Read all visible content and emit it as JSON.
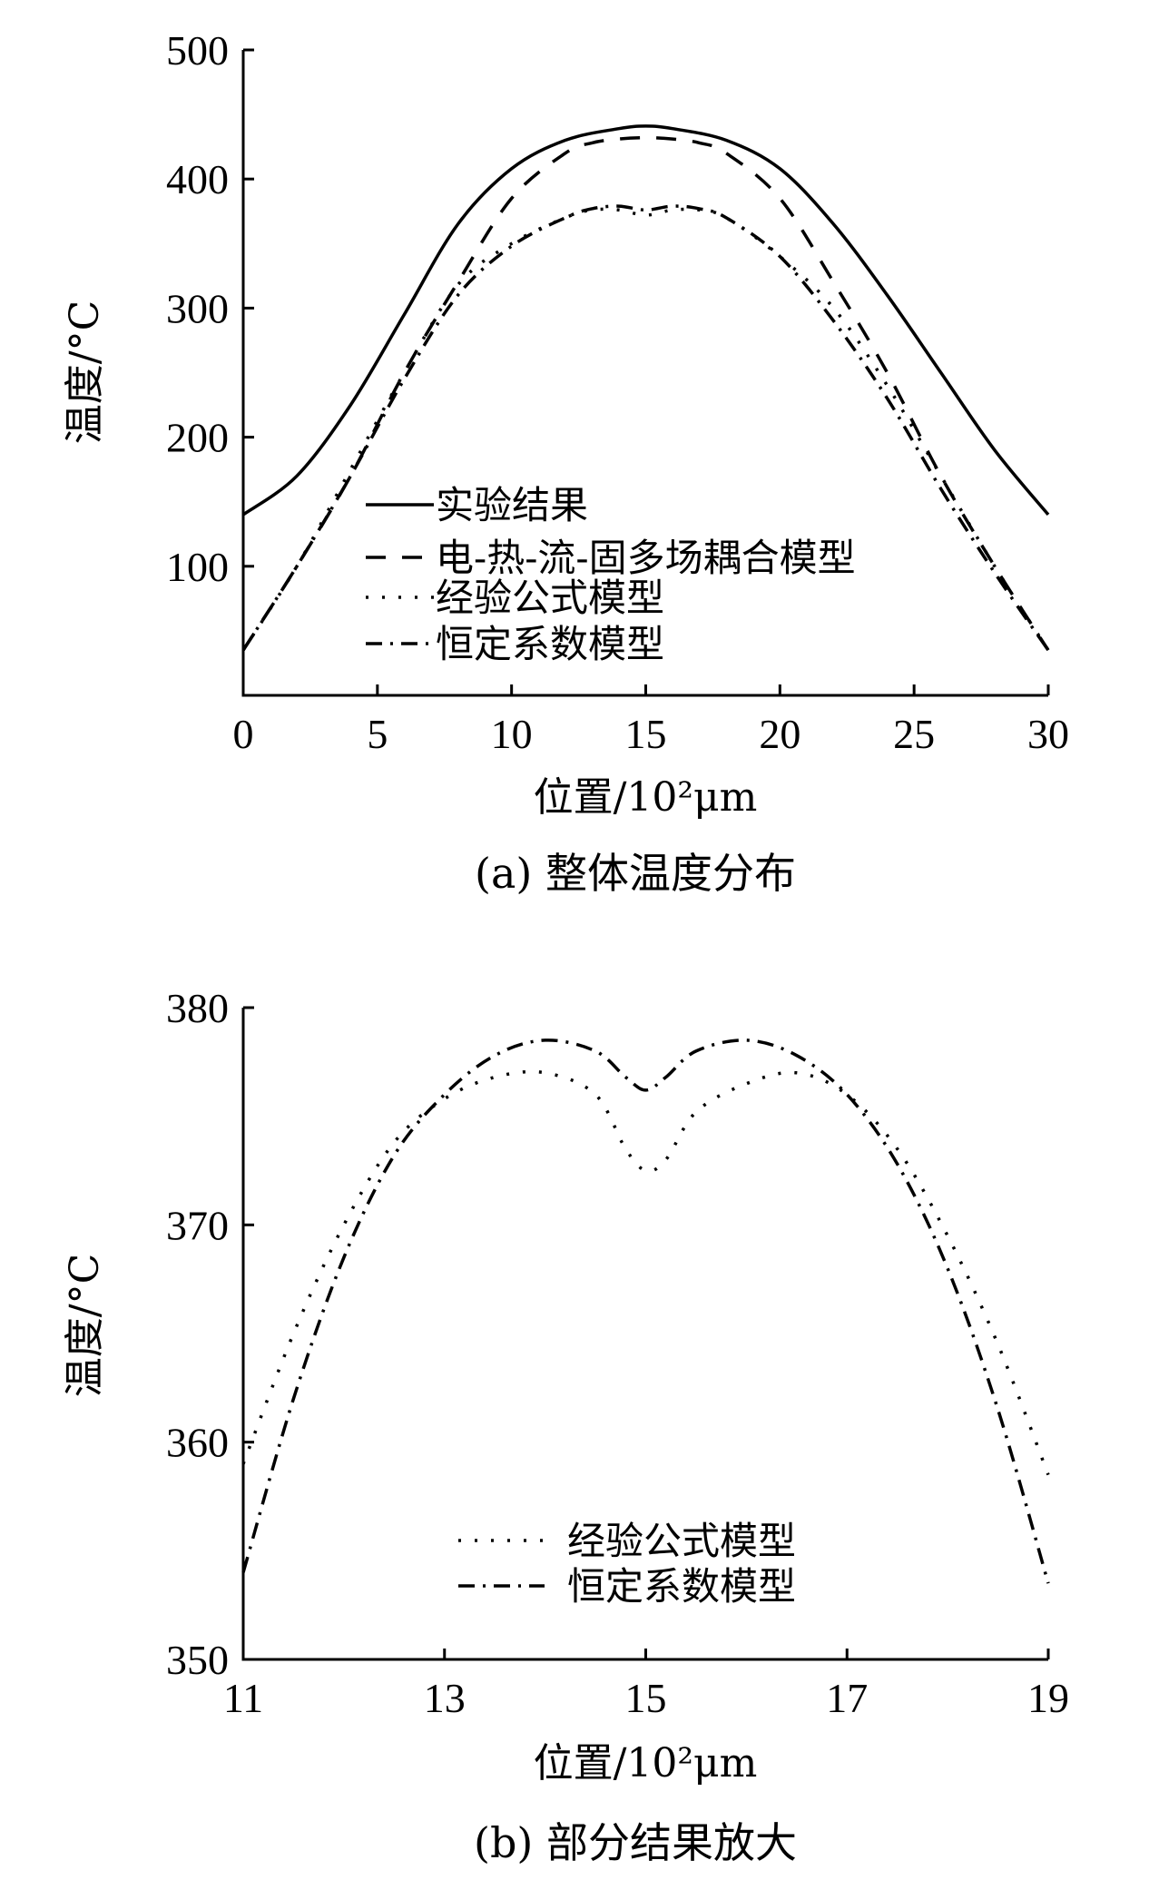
{
  "chart_data": [
    {
      "type": "line",
      "caption": "(a) 整体温度分布",
      "xlabel": "位置/10²μm",
      "ylabel": "温度/°C",
      "xlim": [
        0,
        30
      ],
      "ylim": [
        0,
        500
      ],
      "xticks": [
        "0",
        "5",
        "10",
        "15",
        "20",
        "25",
        "30"
      ],
      "yticks": [
        "100",
        "200",
        "300",
        "400",
        "500"
      ],
      "xtick_values": [
        0,
        5,
        10,
        15,
        20,
        25,
        30
      ],
      "ytick_values": [
        100,
        200,
        300,
        400,
        500
      ],
      "legend_placement": "lower-center",
      "series": [
        {
          "name": "实验结果",
          "style": "solid",
          "points": [
            [
              0,
              140
            ],
            [
              2,
              170
            ],
            [
              4,
              225
            ],
            [
              6,
              295
            ],
            [
              8,
              365
            ],
            [
              10,
              408
            ],
            [
              12,
              430
            ],
            [
              14,
              439
            ],
            [
              15,
              441
            ],
            [
              16,
              439
            ],
            [
              18,
              430
            ],
            [
              20,
              408
            ],
            [
              22,
              365
            ],
            [
              24,
              310
            ],
            [
              26,
              250
            ],
            [
              28,
              190
            ],
            [
              30,
              140
            ]
          ]
        },
        {
          "name": "电-热-流-固多场耦合模型",
          "style": "dashed",
          "points": [
            [
              0,
              35
            ],
            [
              2,
              100
            ],
            [
              4,
              170
            ],
            [
              6,
              250
            ],
            [
              8,
              320
            ],
            [
              10,
              385
            ],
            [
              12,
              420
            ],
            [
              13,
              428
            ],
            [
              14,
              431
            ],
            [
              15,
              432
            ],
            [
              16,
              431
            ],
            [
              17,
              428
            ],
            [
              18,
              420
            ],
            [
              20,
              385
            ],
            [
              22,
              320
            ],
            [
              24,
              250
            ],
            [
              26,
              170
            ],
            [
              28,
              100
            ],
            [
              30,
              35
            ]
          ]
        },
        {
          "name": "经验公式模型",
          "style": "dotted",
          "points": [
            [
              0,
              35
            ],
            [
              2,
              100
            ],
            [
              4,
              175
            ],
            [
              6,
              250
            ],
            [
              8,
              318
            ],
            [
              10,
              350
            ],
            [
              12,
              370
            ],
            [
              13,
              376
            ],
            [
              14,
              376
            ],
            [
              15,
              372
            ],
            [
              16,
              376
            ],
            [
              17,
              376
            ],
            [
              18,
              370
            ],
            [
              20,
              340
            ],
            [
              22,
              300
            ],
            [
              24,
              240
            ],
            [
              26,
              170
            ],
            [
              28,
              100
            ],
            [
              30,
              35
            ]
          ]
        },
        {
          "name": "恒定系数模型",
          "style": "dashdot",
          "points": [
            [
              0,
              35
            ],
            [
              2,
              100
            ],
            [
              4,
              170
            ],
            [
              6,
              245
            ],
            [
              8,
              310
            ],
            [
              10,
              348
            ],
            [
              12,
              370
            ],
            [
              13,
              377
            ],
            [
              14,
              379
            ],
            [
              15,
              376
            ],
            [
              16,
              379
            ],
            [
              17,
              377
            ],
            [
              18,
              370
            ],
            [
              20,
              340
            ],
            [
              22,
              290
            ],
            [
              24,
              230
            ],
            [
              26,
              160
            ],
            [
              28,
              95
            ],
            [
              30,
              35
            ]
          ]
        }
      ]
    },
    {
      "type": "line",
      "caption": "(b) 部分结果放大",
      "xlabel": "位置/10²μm",
      "ylabel": "温度/°C",
      "xlim": [
        11,
        19
      ],
      "ylim": [
        350,
        380
      ],
      "xticks": [
        "11",
        "13",
        "15",
        "17",
        "19"
      ],
      "yticks": [
        "350",
        "360",
        "370",
        "380"
      ],
      "xtick_values": [
        11,
        13,
        15,
        17,
        19
      ],
      "ytick_values": [
        350,
        360,
        370,
        380
      ],
      "legend_placement": "lower-center",
      "series": [
        {
          "name": "经验公式模型",
          "style": "dotted",
          "points": [
            [
              11,
              359
            ],
            [
              11.5,
              365
            ],
            [
              12,
              370
            ],
            [
              12.5,
              373.8
            ],
            [
              13,
              375.8
            ],
            [
              13.5,
              376.8
            ],
            [
              14,
              377
            ],
            [
              14.5,
              376
            ],
            [
              14.8,
              373.5
            ],
            [
              15,
              372.5
            ],
            [
              15.2,
              373
            ],
            [
              15.5,
              375.2
            ],
            [
              16,
              376.5
            ],
            [
              16.5,
              377
            ],
            [
              17,
              376
            ],
            [
              17.5,
              373.5
            ],
            [
              18,
              369.5
            ],
            [
              18.5,
              364.5
            ],
            [
              19,
              358.5
            ]
          ]
        },
        {
          "name": "恒定系数模型",
          "style": "dashdot",
          "points": [
            [
              11,
              354
            ],
            [
              11.5,
              362
            ],
            [
              12,
              368.5
            ],
            [
              12.5,
              373.2
            ],
            [
              13,
              376
            ],
            [
              13.5,
              377.8
            ],
            [
              14,
              378.5
            ],
            [
              14.5,
              378
            ],
            [
              14.8,
              376.8
            ],
            [
              15,
              376.2
            ],
            [
              15.2,
              376.8
            ],
            [
              15.5,
              378
            ],
            [
              16,
              378.5
            ],
            [
              16.5,
              377.8
            ],
            [
              17,
              376
            ],
            [
              17.5,
              372.8
            ],
            [
              18,
              368
            ],
            [
              18.5,
              361.5
            ],
            [
              19,
              353.5
            ]
          ]
        }
      ]
    }
  ]
}
